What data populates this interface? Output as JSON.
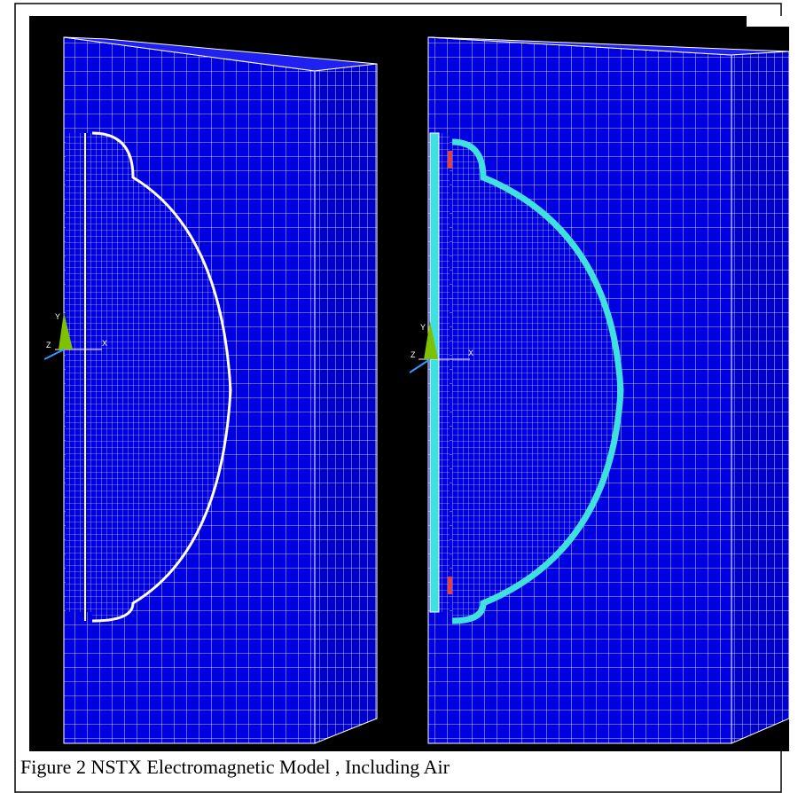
{
  "figure": {
    "caption": "Figure 2 NSTX Electromagnetic Model , Including Air",
    "left_panel": {
      "triad": [
        "Y",
        "Z",
        "X"
      ]
    },
    "right_panel": {
      "triad": [
        "Y",
        "Z",
        "X"
      ]
    }
  }
}
